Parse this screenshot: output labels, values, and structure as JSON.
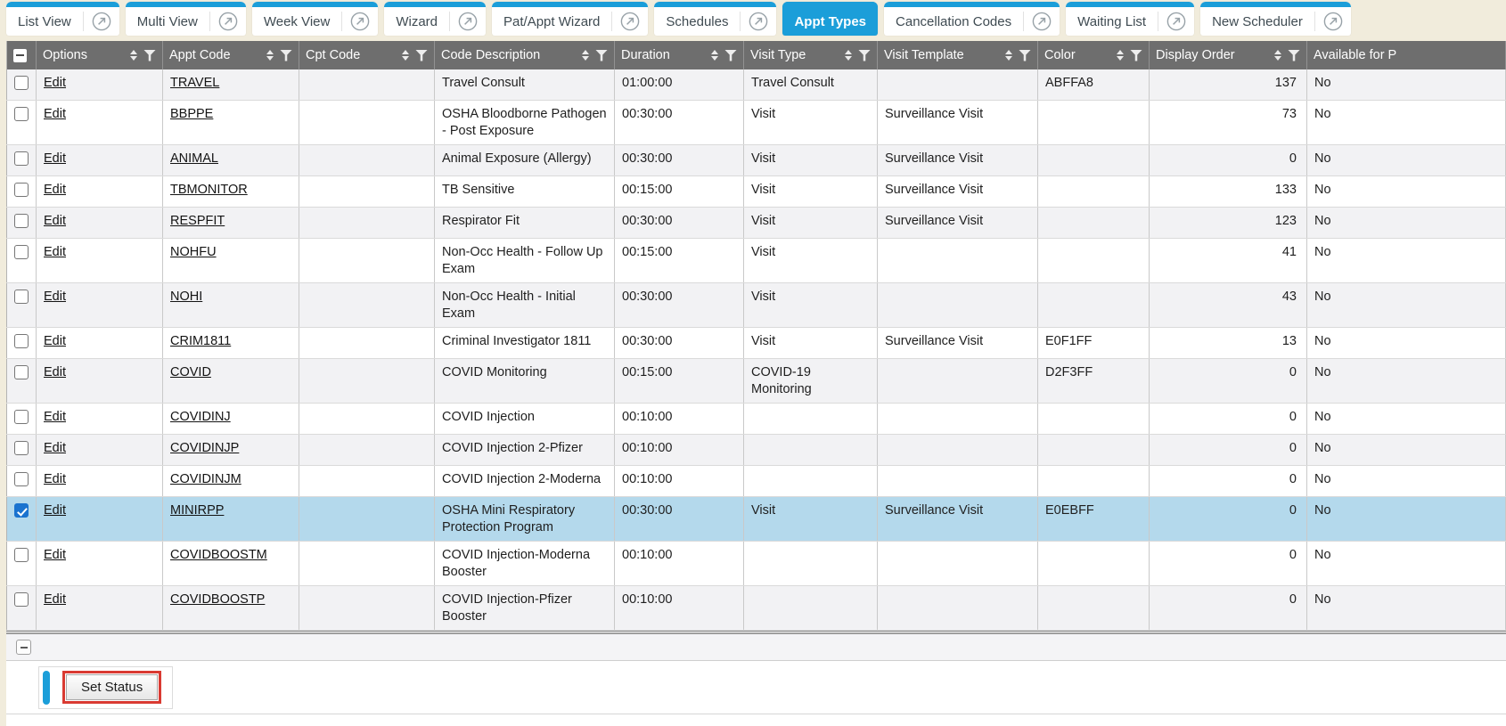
{
  "tabs": [
    {
      "label": "List View",
      "active": false,
      "popout": true
    },
    {
      "label": "Multi View",
      "active": false,
      "popout": true
    },
    {
      "label": "Week View",
      "active": false,
      "popout": true
    },
    {
      "label": "Wizard",
      "active": false,
      "popout": true
    },
    {
      "label": "Pat/Appt Wizard",
      "active": false,
      "popout": true
    },
    {
      "label": "Schedules",
      "active": false,
      "popout": true
    },
    {
      "label": "Appt Types",
      "active": true,
      "popout": false
    },
    {
      "label": "Cancellation Codes",
      "active": false,
      "popout": true
    },
    {
      "label": "Waiting List",
      "active": false,
      "popout": true
    },
    {
      "label": "New Scheduler",
      "active": false,
      "popout": true
    }
  ],
  "table": {
    "edit_label": "Edit",
    "columns": [
      {
        "label": "",
        "type": "select",
        "sort": false,
        "filter": false
      },
      {
        "label": "Options",
        "sort": true,
        "filter": true
      },
      {
        "label": "Appt Code",
        "sort": true,
        "filter": true
      },
      {
        "label": "Cpt Code",
        "sort": true,
        "filter": true
      },
      {
        "label": "Code Description",
        "sort": true,
        "filter": true
      },
      {
        "label": "Duration",
        "sort": true,
        "filter": true
      },
      {
        "label": "Visit Type",
        "sort": true,
        "filter": true
      },
      {
        "label": "Visit Template",
        "sort": true,
        "filter": true
      },
      {
        "label": "Color",
        "sort": true,
        "filter": true
      },
      {
        "label": "Display Order",
        "sort": true,
        "filter": true
      },
      {
        "label": "Available for P",
        "sort": false,
        "filter": false
      }
    ],
    "rows": [
      {
        "appt_code": "TRAVEL",
        "cpt_code": "",
        "description": "Travel Consult",
        "duration": "01:00:00",
        "visit_type": "Travel Consult",
        "visit_template": "",
        "color": "ABFFA8",
        "display_order": "137",
        "available": "No",
        "selected": false
      },
      {
        "appt_code": "BBPPE",
        "cpt_code": "",
        "description": "OSHA Bloodborne Pathogen - Post Exposure",
        "duration": "00:30:00",
        "visit_type": "Visit",
        "visit_template": "Surveillance Visit",
        "color": "",
        "display_order": "73",
        "available": "No",
        "selected": false
      },
      {
        "appt_code": "ANIMAL",
        "cpt_code": "",
        "description": "Animal Exposure (Allergy)",
        "duration": "00:30:00",
        "visit_type": "Visit",
        "visit_template": "Surveillance Visit",
        "color": "",
        "display_order": "0",
        "available": "No",
        "selected": false
      },
      {
        "appt_code": "TBMONITOR",
        "cpt_code": "",
        "description": "TB Sensitive",
        "duration": "00:15:00",
        "visit_type": "Visit",
        "visit_template": "Surveillance Visit",
        "color": "",
        "display_order": "133",
        "available": "No",
        "selected": false
      },
      {
        "appt_code": "RESPFIT",
        "cpt_code": "",
        "description": "Respirator Fit",
        "duration": "00:30:00",
        "visit_type": "Visit",
        "visit_template": "Surveillance Visit",
        "color": "",
        "display_order": "123",
        "available": "No",
        "selected": false
      },
      {
        "appt_code": "NOHFU",
        "cpt_code": "",
        "description": "Non-Occ Health - Follow Up Exam",
        "duration": "00:15:00",
        "visit_type": "Visit",
        "visit_template": "",
        "color": "",
        "display_order": "41",
        "available": "No",
        "selected": false
      },
      {
        "appt_code": "NOHI",
        "cpt_code": "",
        "description": "Non-Occ Health - Initial Exam",
        "duration": "00:30:00",
        "visit_type": "Visit",
        "visit_template": "",
        "color": "",
        "display_order": "43",
        "available": "No",
        "selected": false
      },
      {
        "appt_code": "CRIM1811",
        "cpt_code": "",
        "description": "Criminal Investigator 1811",
        "duration": "00:30:00",
        "visit_type": "Visit",
        "visit_template": "Surveillance Visit",
        "color": "E0F1FF",
        "display_order": "13",
        "available": "No",
        "selected": false
      },
      {
        "appt_code": "COVID",
        "cpt_code": "",
        "description": "COVID Monitoring",
        "duration": "00:15:00",
        "visit_type": "COVID-19 Monitoring",
        "visit_template": "",
        "color": "D2F3FF",
        "display_order": "0",
        "available": "No",
        "selected": false
      },
      {
        "appt_code": "COVIDINJ",
        "cpt_code": "",
        "description": "COVID Injection",
        "duration": "00:10:00",
        "visit_type": "",
        "visit_template": "",
        "color": "",
        "display_order": "0",
        "available": "No",
        "selected": false
      },
      {
        "appt_code": "COVIDINJP",
        "cpt_code": "",
        "description": "COVID Injection 2-Pfizer",
        "duration": "00:10:00",
        "visit_type": "",
        "visit_template": "",
        "color": "",
        "display_order": "0",
        "available": "No",
        "selected": false
      },
      {
        "appt_code": "COVIDINJM",
        "cpt_code": "",
        "description": "COVID Injection 2-Moderna",
        "duration": "00:10:00",
        "visit_type": "",
        "visit_template": "",
        "color": "",
        "display_order": "0",
        "available": "No",
        "selected": false
      },
      {
        "appt_code": "MINIRPP",
        "cpt_code": "",
        "description": "OSHA Mini Respiratory Protection Program",
        "duration": "00:30:00",
        "visit_type": "Visit",
        "visit_template": "Surveillance Visit",
        "color": "E0EBFF",
        "display_order": "0",
        "available": "No",
        "selected": true
      },
      {
        "appt_code": "COVIDBOOSTM",
        "cpt_code": "",
        "description": "COVID Injection-Moderna Booster",
        "duration": "00:10:00",
        "visit_type": "",
        "visit_template": "",
        "color": "",
        "display_order": "0",
        "available": "No",
        "selected": false
      },
      {
        "appt_code": "COVIDBOOSTP",
        "cpt_code": "",
        "description": "COVID Injection-Pfizer Booster",
        "duration": "00:10:00",
        "visit_type": "",
        "visit_template": "",
        "color": "",
        "display_order": "0",
        "available": "No",
        "selected": false
      }
    ]
  },
  "footer": {
    "set_status_label": "Set Status"
  },
  "colors": {
    "accent": "#1b9ed9",
    "header_bg": "#6e6e6e",
    "selected_row": "#b4d9ec",
    "alt_row": "#f2f2f4",
    "page_bg": "#f1ecdc",
    "highlight_red": "#d93a32"
  }
}
